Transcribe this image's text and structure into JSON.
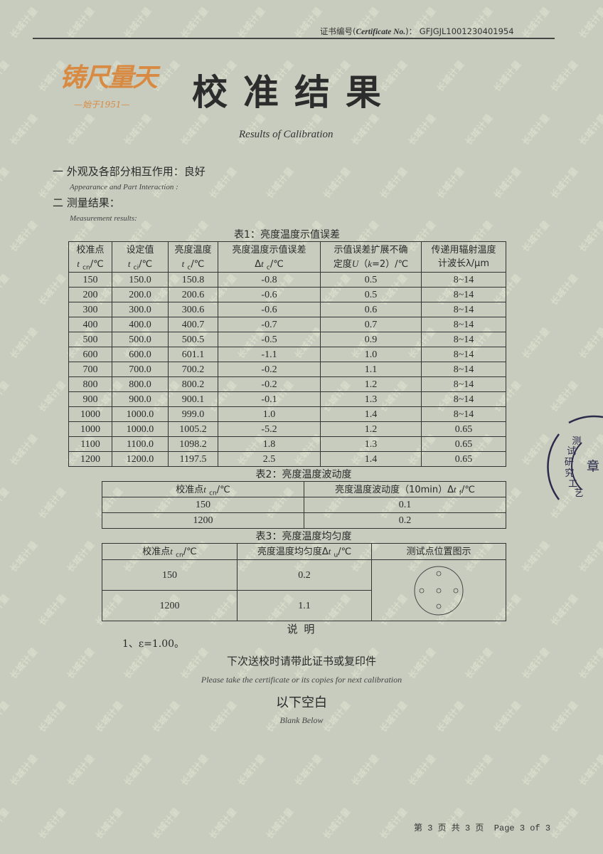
{
  "watermark_text": "长城计量",
  "header": {
    "cert_label": "证书编号(",
    "cert_label_en": "Certificate No.",
    "cert_label_end": ")：",
    "cert_no": "GFJGJL1001230401954",
    "logo_text": "铸尺量天",
    "logo_sub": "—始于1951—",
    "title": "校准结果",
    "subtitle": "Results of Calibration"
  },
  "sections": {
    "appearance": "一 外观及各部分相互作用：良好",
    "appearance_en": "Appearance and Part Interaction :",
    "measurement": "二 测量结果：",
    "measurement_en": "Measurement results:"
  },
  "table1": {
    "caption": "表1：亮度温度示值误差",
    "headers": [
      "校准点<br><i>t</i> <sub>cn</sub>/℃",
      "设定值<br><i>t</i> <sub>ci</sub>/℃",
      "亮度温度<br><i>t</i> <sub>c</sub>/℃",
      "亮度温度示值误差<br>Δ<i>t</i> <sub>c</sub>/℃",
      "示值误差扩展不确<br>定度<i>U</i>（<i>k</i>=2）/℃",
      "传递用辐射温度<br>计波长λ/μm"
    ],
    "rows": [
      [
        "150",
        "150.0",
        "150.8",
        "-0.8",
        "0.5",
        "8~14"
      ],
      [
        "200",
        "200.0",
        "200.6",
        "-0.6",
        "0.5",
        "8~14"
      ],
      [
        "300",
        "300.0",
        "300.6",
        "-0.6",
        "0.6",
        "8~14"
      ],
      [
        "400",
        "400.0",
        "400.7",
        "-0.7",
        "0.7",
        "8~14"
      ],
      [
        "500",
        "500.0",
        "500.5",
        "-0.5",
        "0.9",
        "8~14"
      ],
      [
        "600",
        "600.0",
        "601.1",
        "-1.1",
        "1.0",
        "8~14"
      ],
      [
        "700",
        "700.0",
        "700.2",
        "-0.2",
        "1.1",
        "8~14"
      ],
      [
        "800",
        "800.0",
        "800.2",
        "-0.2",
        "1.2",
        "8~14"
      ],
      [
        "900",
        "900.0",
        "900.1",
        "-0.1",
        "1.3",
        "8~14"
      ],
      [
        "1000",
        "1000.0",
        "999.0",
        "1.0",
        "1.4",
        "8~14"
      ],
      [
        "1000",
        "1000.0",
        "1005.2",
        "-5.2",
        "1.2",
        "0.65"
      ],
      [
        "1100",
        "1100.0",
        "1098.2",
        "1.8",
        "1.3",
        "0.65"
      ],
      [
        "1200",
        "1200.0",
        "1197.5",
        "2.5",
        "1.4",
        "0.65"
      ]
    ]
  },
  "table2": {
    "caption": "表2：亮度温度波动度",
    "headers": [
      "校准点<i>t</i> <sub>cn</sub>/℃",
      "亮度温度波动度（10min）Δ<i>t</i> <sub>f</sub>/℃"
    ],
    "rows": [
      [
        "150",
        "0.1"
      ],
      [
        "1200",
        "0.2"
      ]
    ]
  },
  "table3": {
    "caption": "表3：亮度温度均匀度",
    "headers": [
      "校准点<i>t</i> <sub>cn</sub>/℃",
      "亮度温度均匀度Δ<i>t</i> <sub>u</sub>/℃",
      "测试点位置图示"
    ],
    "rows": [
      [
        "150",
        "0.2"
      ],
      [
        "1200",
        "1.1"
      ]
    ]
  },
  "notes": {
    "heading": "说 明",
    "items": [
      "1、ε=1.00。"
    ]
  },
  "footer": {
    "reminder": "下次送校时请带此证书或复印件",
    "reminder_en": "Please take the certificate or its copies for next calibration",
    "blank": "以下空白",
    "blank_en": "Blank Below",
    "page": "第 3 页 共 3 页  Page 3 of 3"
  },
  "stamp": {
    "arc_text": "测试研究工艺",
    "center_text": "章"
  },
  "colors": {
    "paper": "#c8ccbe",
    "logo": "#d98a42",
    "ink": "#2a2a2a"
  }
}
